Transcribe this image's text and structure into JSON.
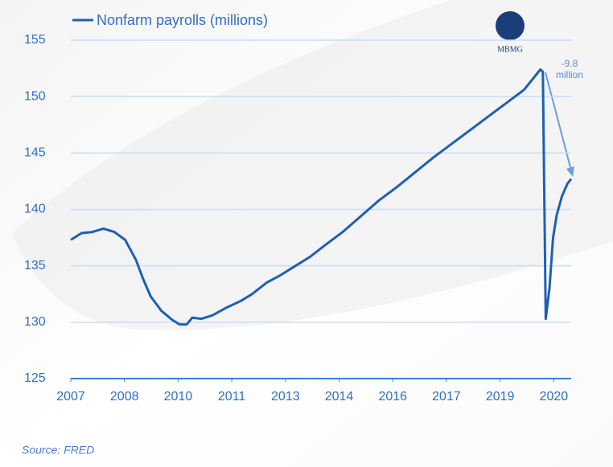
{
  "chart_data": {
    "type": "line",
    "legend": "Nonfarm payrolls (millions)",
    "annotation": [
      "-9.8",
      "million"
    ],
    "logo": "MBMG",
    "source": "Source: FRED",
    "color": "#1f5fb5",
    "x": [
      2007.0,
      2007.3,
      2007.6,
      2007.9,
      2008.2,
      2008.5,
      2008.8,
      2009.0,
      2009.2,
      2009.5,
      2009.8,
      2010.0,
      2010.2,
      2010.35,
      2010.6,
      2010.9,
      2011.3,
      2011.7,
      2012.0,
      2012.4,
      2012.8,
      2013.2,
      2013.6,
      2014.0,
      2014.5,
      2015.0,
      2015.5,
      2016.0,
      2016.5,
      2017.0,
      2017.5,
      2018.0,
      2018.5,
      2019.0,
      2019.5,
      2019.95,
      2020.02,
      2020.1,
      2020.2,
      2020.3,
      2020.4,
      2020.55,
      2020.7,
      2020.8
    ],
    "values": [
      137.3,
      137.9,
      138.0,
      138.3,
      138.0,
      137.3,
      135.5,
      133.8,
      132.3,
      131.0,
      130.2,
      129.8,
      129.8,
      130.4,
      130.3,
      130.6,
      131.3,
      131.9,
      132.5,
      133.5,
      134.2,
      135.0,
      135.8,
      136.8,
      138.0,
      139.4,
      140.8,
      142.0,
      143.3,
      144.6,
      145.8,
      147.0,
      148.2,
      149.4,
      150.6,
      152.4,
      152.2,
      130.3,
      133.0,
      137.5,
      139.5,
      141.2,
      142.3,
      142.7
    ],
    "xlim": [
      2007.0,
      2020.8
    ],
    "xticks": [
      {
        "value": 2007.0,
        "label": "2007"
      },
      {
        "value": 2008.48,
        "label": "2008"
      },
      {
        "value": 2009.96,
        "label": "2010"
      },
      {
        "value": 2011.44,
        "label": "2011"
      },
      {
        "value": 2012.92,
        "label": "2013"
      },
      {
        "value": 2014.4,
        "label": "2014"
      },
      {
        "value": 2015.88,
        "label": "2016"
      },
      {
        "value": 2017.36,
        "label": "2017"
      },
      {
        "value": 2018.84,
        "label": "2019"
      },
      {
        "value": 2020.32,
        "label": "2020"
      }
    ],
    "ylim": [
      125,
      155
    ],
    "yticks": [
      125,
      130,
      135,
      140,
      145,
      150,
      155
    ],
    "grid": true
  }
}
